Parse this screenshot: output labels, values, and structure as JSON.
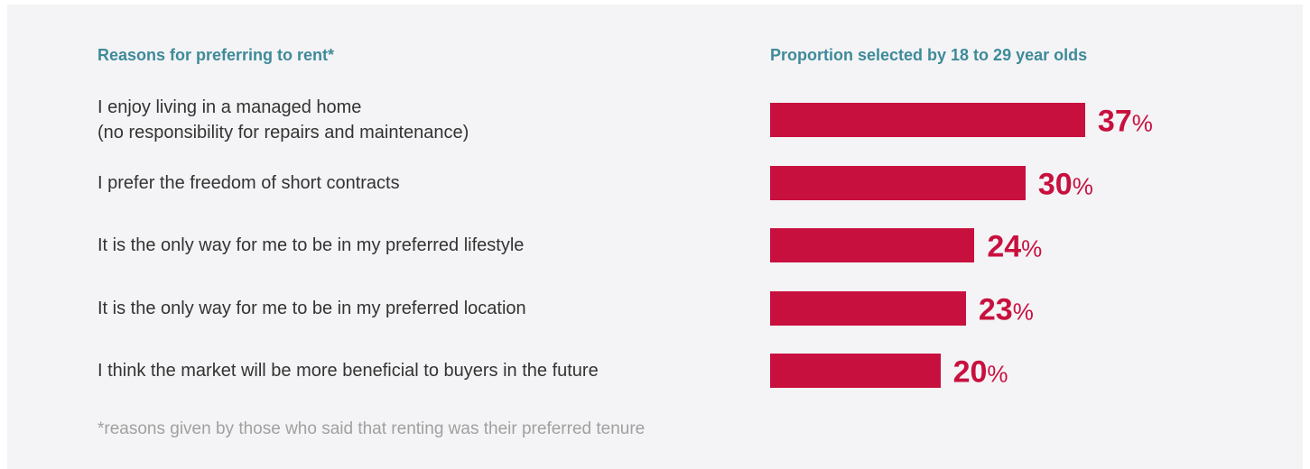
{
  "chart_data": {
    "type": "bar",
    "orientation": "horizontal",
    "title": "Reasons for preferring to rent*",
    "value_title": "Proportion selected by 18 to 29 year olds",
    "categories": [
      "I enjoy living in a managed home\n(no responsibility for repairs and maintenance)",
      "I prefer the freedom of short contracts",
      "It is the only way for me to be in my preferred lifestyle",
      "It is the only way for me to be in my preferred location",
      "I think the market will be more beneficial to buyers in the future"
    ],
    "values": [
      37,
      30,
      24,
      23,
      20
    ],
    "value_labels": [
      "37%",
      "30%",
      "24%",
      "23%",
      "20%"
    ],
    "color": "#c8103e",
    "footnote": "*reasons given by those who said that renting was their preferred tenure"
  }
}
